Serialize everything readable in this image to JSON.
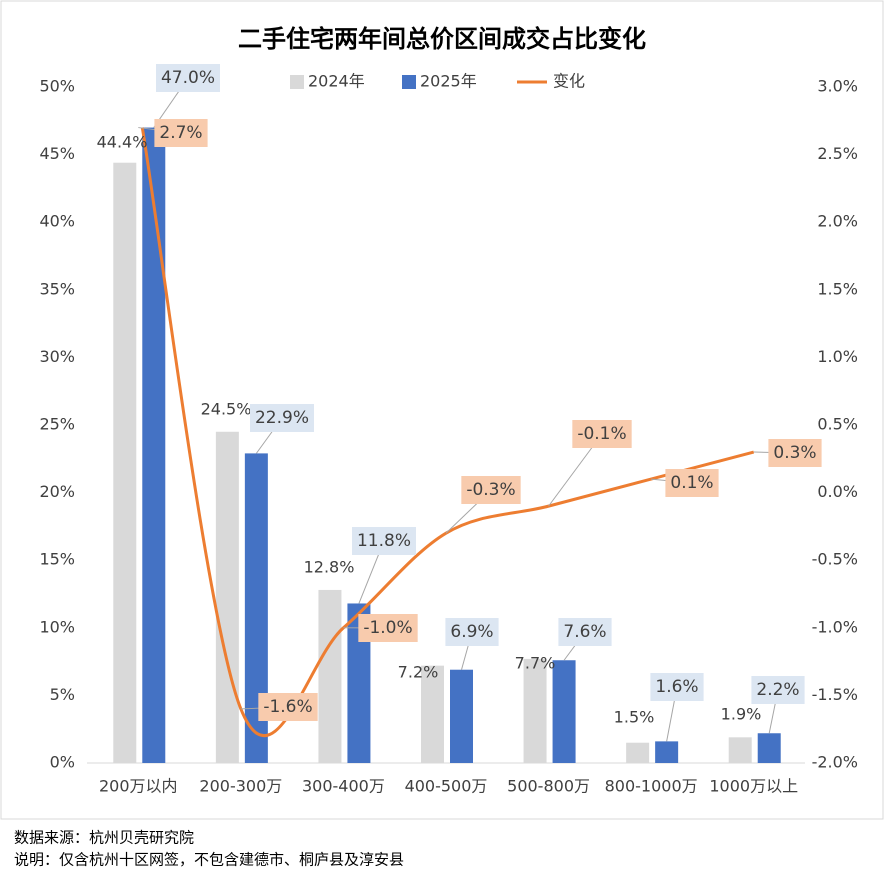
{
  "chart_data": {
    "type": "bar_line",
    "title": "二手住宅两年间总价区间成交占比变化",
    "categories": [
      "200万以内",
      "200-300万",
      "300-400万",
      "400-500万",
      "500-800万",
      "800-1000万",
      "1000万以上"
    ],
    "series": [
      {
        "name": "2024年",
        "color": "#d9d9d9",
        "values": [
          44.4,
          24.5,
          12.8,
          7.2,
          7.7,
          1.5,
          1.9
        ],
        "value_labels": [
          "44.4%",
          "24.5%",
          "12.8%",
          "7.2%",
          "7.7%",
          "1.5%",
          "1.9%"
        ]
      },
      {
        "name": "2025年",
        "color": "#4472c4",
        "values": [
          47.0,
          22.9,
          11.8,
          6.9,
          7.6,
          1.6,
          2.2
        ],
        "value_labels": [
          "47.0%",
          "22.9%",
          "11.8%",
          "6.9%",
          "7.6%",
          "1.6%",
          "2.2%"
        ]
      },
      {
        "name": "变化",
        "color": "#ed7d31",
        "axis": "y2",
        "values": [
          2.7,
          -1.6,
          -1.0,
          -0.3,
          -0.1,
          0.1,
          0.3
        ],
        "value_labels": [
          "2.7%",
          "-1.6%",
          "-1.0%",
          "-0.3%",
          "-0.1%",
          "0.1%",
          "0.3%"
        ]
      }
    ],
    "ylim": [
      0,
      50
    ],
    "yticks": [
      {
        "value": 0,
        "label": "0%"
      },
      {
        "value": 5,
        "label": "5%"
      },
      {
        "value": 10,
        "label": "10%"
      },
      {
        "value": 15,
        "label": "15%"
      },
      {
        "value": 20,
        "label": "20%"
      },
      {
        "value": 25,
        "label": "25%"
      },
      {
        "value": 30,
        "label": "30%"
      },
      {
        "value": 35,
        "label": "35%"
      },
      {
        "value": 40,
        "label": "40%"
      },
      {
        "value": 45,
        "label": "45%"
      },
      {
        "value": 50,
        "label": "50%"
      }
    ],
    "y2lim": [
      -2.0,
      3.0
    ],
    "y2ticks": [
      {
        "value": -2.0,
        "label": "-2.0%"
      },
      {
        "value": -1.5,
        "label": "-1.5%"
      },
      {
        "value": -1.0,
        "label": "-1.0%"
      },
      {
        "value": -0.5,
        "label": "-0.5%"
      },
      {
        "value": 0,
        "label": "0.0%"
      },
      {
        "value": 0.5,
        "label": "0.5%"
      },
      {
        "value": 1.0,
        "label": "1.0%"
      },
      {
        "value": 1.5,
        "label": "1.5%"
      },
      {
        "value": 2.0,
        "label": "2.0%"
      },
      {
        "value": 2.5,
        "label": "2.5%"
      },
      {
        "value": 3.0,
        "label": "3.0%"
      }
    ],
    "grid": false,
    "legend": "top",
    "source": "数据来源：杭州贝壳研究院",
    "note": "说明：仅含杭州十区网签，不包含建德市、桐庐县及淳安县"
  }
}
